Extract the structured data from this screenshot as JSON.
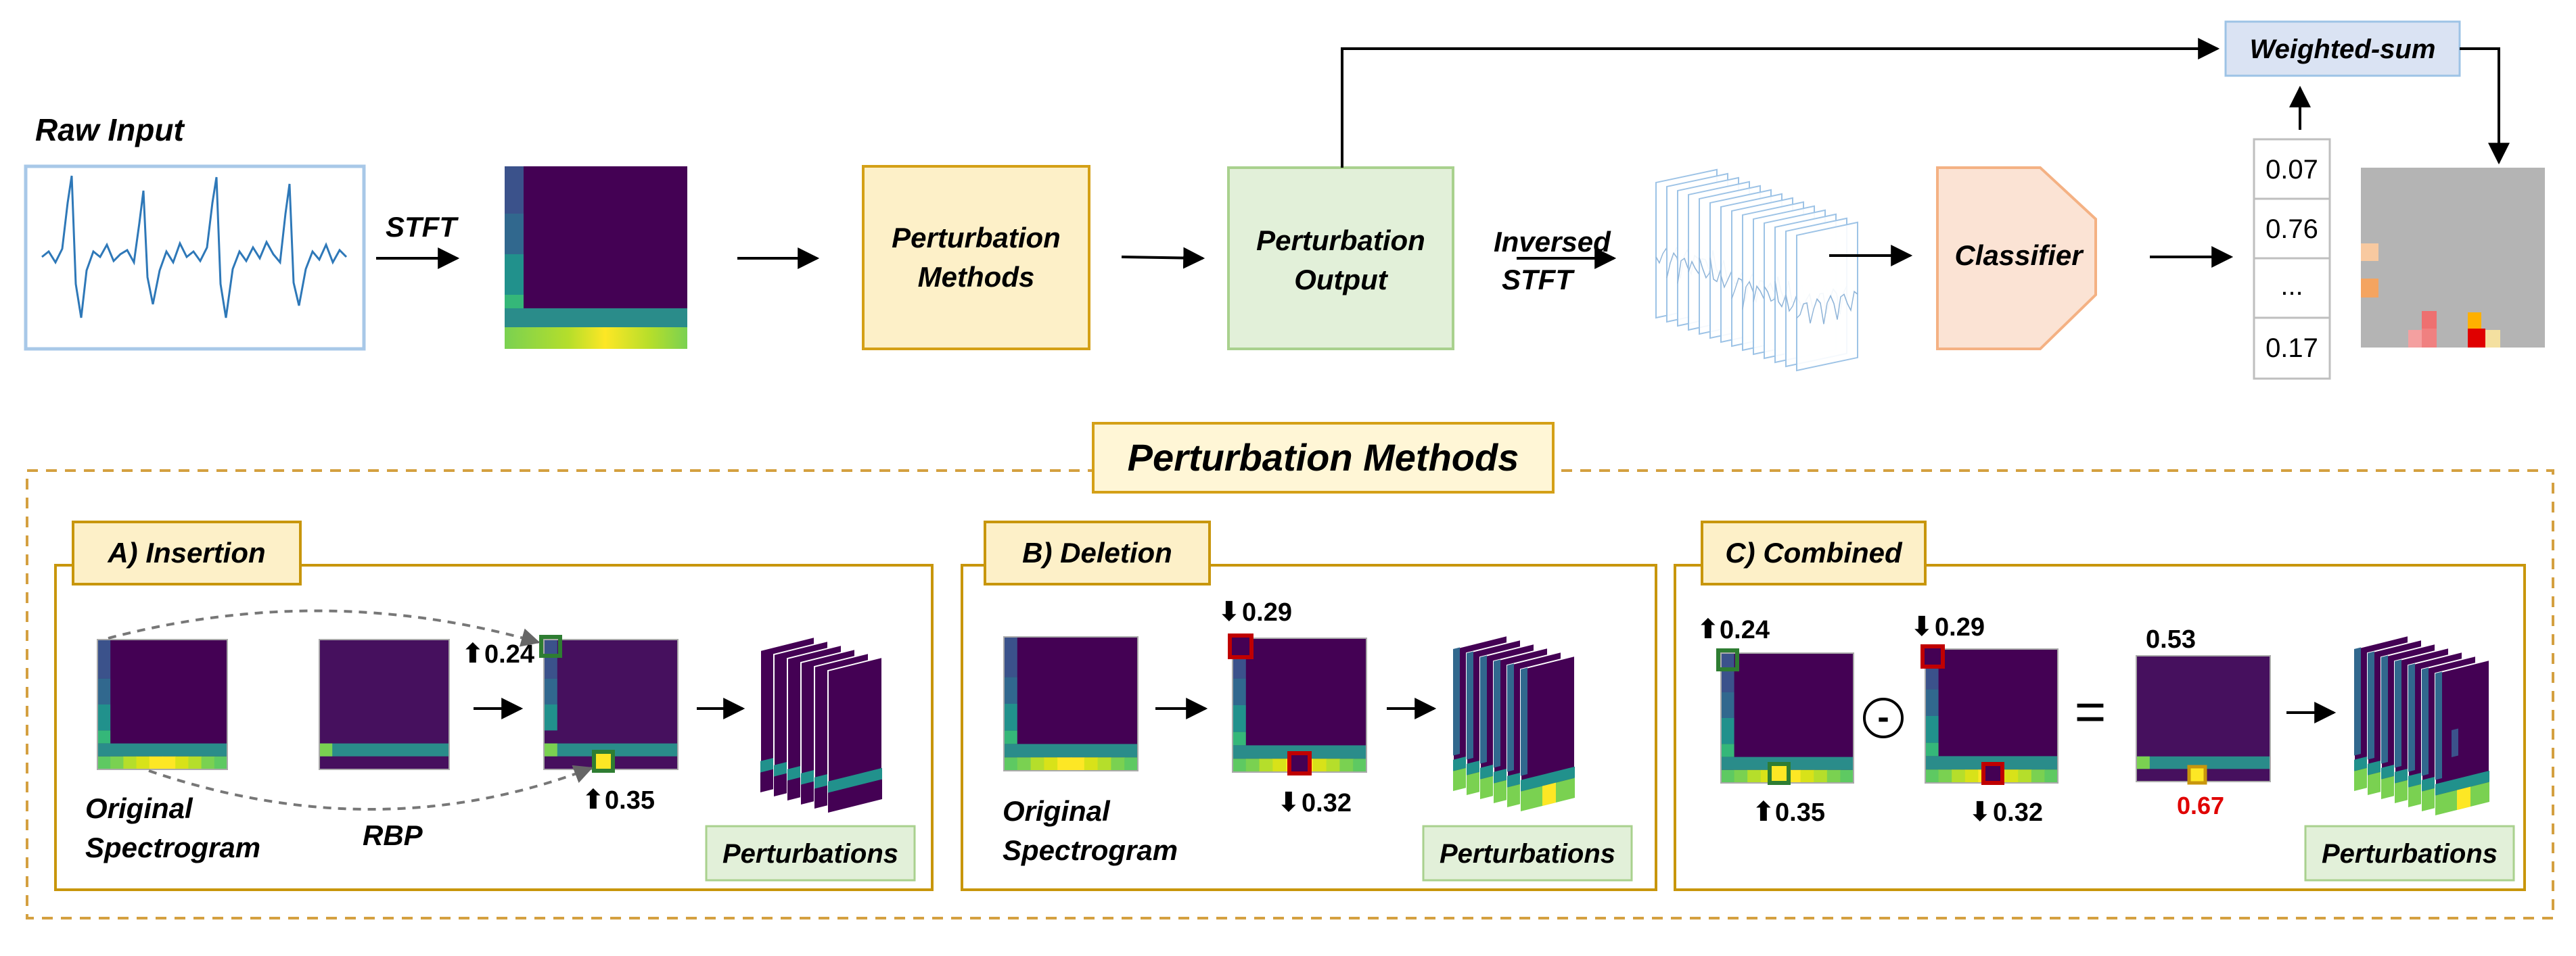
{
  "top": {
    "raw_input_label": "Raw Input",
    "stft_label": "STFT",
    "perturbation_methods_box": [
      "Perturbation",
      "Methods"
    ],
    "perturbation_output_box": [
      "Perturbation",
      "Output"
    ],
    "inversed_stft_label": [
      "Inversed",
      "STFT"
    ],
    "classifier_label": "Classifier",
    "weighted_sum_label": "Weighted-sum",
    "scores": [
      "0.07",
      "0.76",
      "...",
      "0.17"
    ]
  },
  "panel_title": "Perturbation Methods",
  "insertion": {
    "title": "A) Insertion",
    "original_label": [
      "Original",
      "Spectrogram"
    ],
    "rbp_label": "RBP",
    "value_top": "0.24",
    "value_bottom": "0.35",
    "perturbations_label": "Perturbations"
  },
  "deletion": {
    "title": "B) Deletion",
    "original_label": [
      "Original",
      "Spectrogram"
    ],
    "value_top": "0.29",
    "value_bottom": "0.32",
    "perturbations_label": "Perturbations"
  },
  "combined": {
    "title": "C) Combined",
    "value_a_top": "0.24",
    "value_a_bottom": "0.35",
    "value_b_top": "0.29",
    "value_b_bottom": "0.32",
    "result_top": "0.53",
    "result_bottom": "0.67",
    "minus_symbol": "-",
    "equals_symbol": "=",
    "perturbations_label": "Perturbations"
  },
  "colors": {
    "purple_bg": "#440154",
    "green": "#2e7d32",
    "red": "#c00000",
    "gold": "#c8960c",
    "methods_fill": "#fdf0c8",
    "output_fill": "#e2f0d9",
    "classifier_fill": "#fbe3d4",
    "weighted_fill": "#dae3f3"
  }
}
